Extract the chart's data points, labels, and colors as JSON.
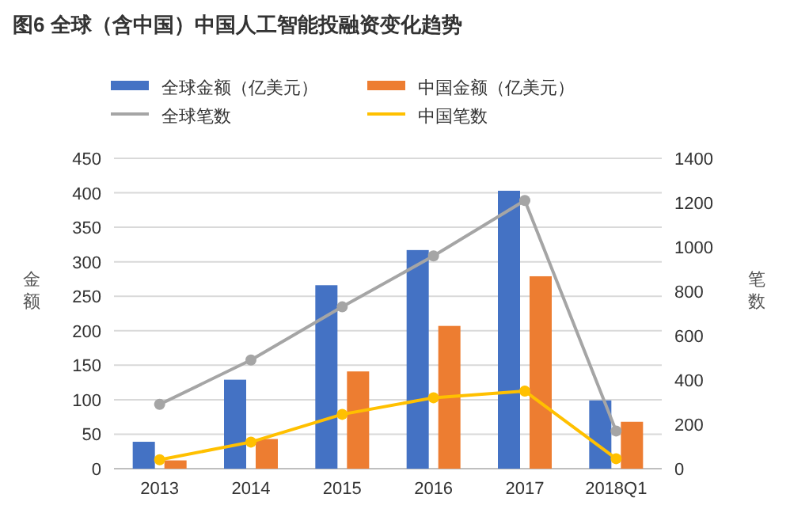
{
  "chart_data": {
    "type": "bar",
    "title": "图6 全球（含中国）中国人工智能投融资变化趋势",
    "ylabel": "金额",
    "y2label": "笔数",
    "categories": [
      "2013",
      "2014",
      "2015",
      "2016",
      "2017",
      "2018Q1"
    ],
    "series": [
      {
        "name": "全球金额（亿美元）",
        "color": "#4472c4",
        "values": [
          39,
          129,
          266,
          317,
          403,
          99
        ]
      },
      {
        "name": "中国金额（亿美元）",
        "color": "#ed7d31",
        "values": [
          12,
          43,
          141,
          207,
          279,
          68
        ]
      },
      {
        "name": "全球笔数",
        "color": "#a5a5a5",
        "type": "line",
        "axis": "y2",
        "values": [
          290,
          490,
          730,
          960,
          1210,
          170
        ]
      },
      {
        "name": "中国笔数",
        "color": "#ffc000",
        "type": "line",
        "axis": "y2",
        "values": [
          40,
          120,
          245,
          320,
          350,
          45
        ]
      }
    ],
    "ylim": [
      0,
      450
    ],
    "yticks": [
      0,
      50,
      100,
      150,
      200,
      250,
      300,
      350,
      400,
      450
    ],
    "y2lim": [
      0,
      1400
    ],
    "y2ticks": [
      0,
      200,
      400,
      600,
      800,
      1000,
      1200,
      1400
    ],
    "grid": "y",
    "legend": "top",
    "marker": "circle"
  }
}
